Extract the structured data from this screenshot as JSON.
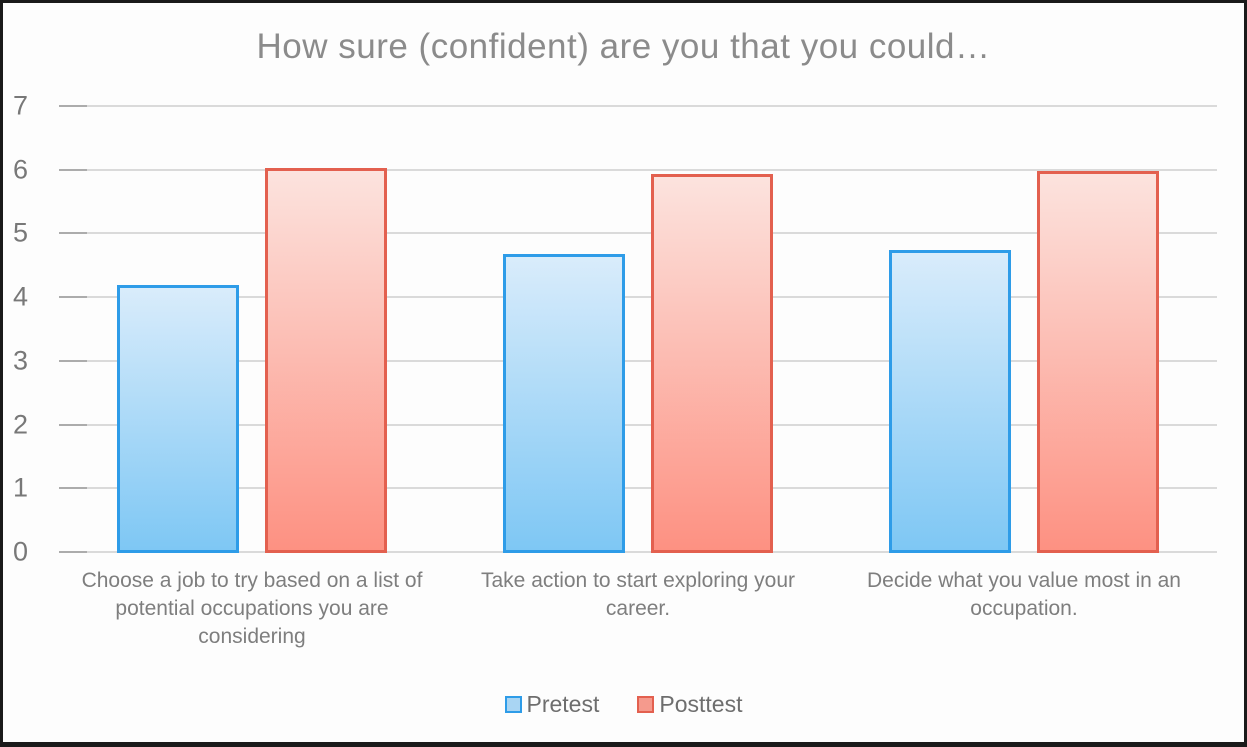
{
  "window": {
    "background": "#fdfdfd",
    "border_color": "#1a1a1a"
  },
  "chart_data": {
    "type": "bar",
    "title": "How sure (confident) are you that you could…",
    "categories": [
      "Choose a job to try based on a list of potential occupations you are considering",
      "Take action to start exploring your career.",
      "Decide what you value most in an occupation."
    ],
    "series": [
      {
        "name": "Pretest",
        "values": [
          4.2,
          4.7,
          4.75
        ],
        "fill_top": "#d9ecfb",
        "fill_bottom": "#7ec7f4",
        "border": "#2e9ce8",
        "swatch_fill": "#a9d5f3"
      },
      {
        "name": "Posttest",
        "values": [
          6.05,
          5.95,
          6.0
        ],
        "fill_top": "#fce3de",
        "fill_bottom": "#fd9182",
        "border": "#e3604f",
        "swatch_fill": "#f59a8d"
      }
    ],
    "xlabel": "",
    "ylabel": "",
    "ylim": [
      0,
      7
    ],
    "yticks": [
      0,
      1,
      2,
      3,
      4,
      5,
      6,
      7
    ],
    "grid": true,
    "gridline_color": "#dadada",
    "tick_color": "#acacac",
    "axis_label_color": "#787878",
    "title_color": "#8b8b8b",
    "legend_position": "bottom"
  }
}
